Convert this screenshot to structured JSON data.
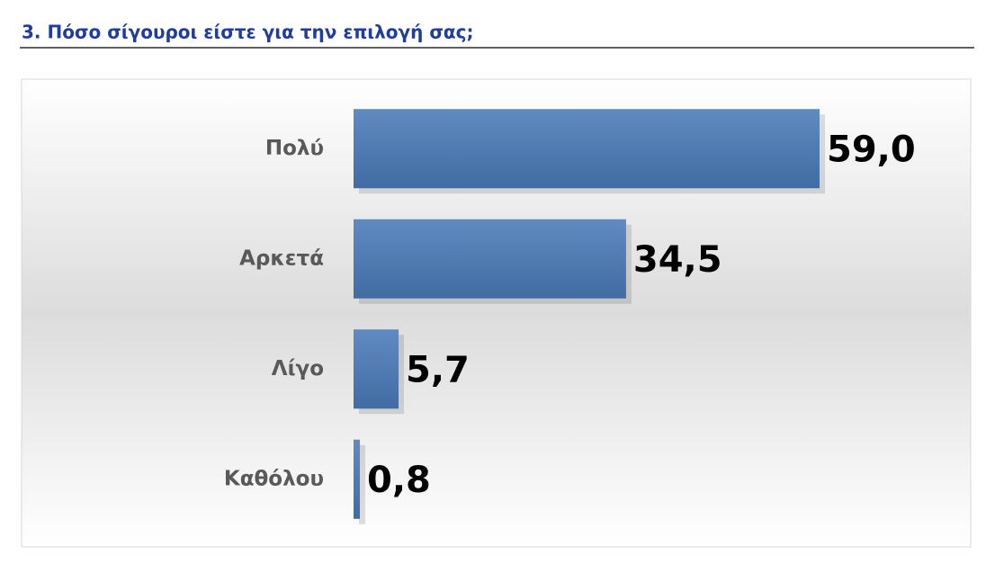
{
  "chart_data": {
    "type": "bar",
    "orientation": "horizontal",
    "title": "3. Πόσο σίγουροι είστε για την επιλογή σας;",
    "categories": [
      "Πολύ",
      "Αρκετά",
      "Λίγο",
      "Καθόλου"
    ],
    "values": [
      59.0,
      34.5,
      5.7,
      0.8
    ],
    "value_labels": [
      "59,0",
      "34,5",
      "5,7",
      "0,8"
    ],
    "color": "#4a7bb9"
  }
}
